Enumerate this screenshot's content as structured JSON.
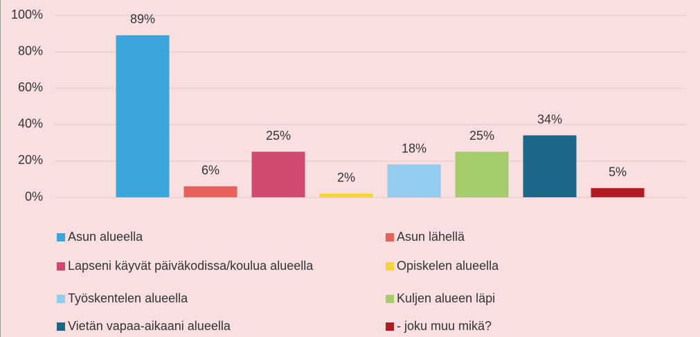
{
  "chart_data": {
    "type": "bar",
    "categories": [
      "Asun alueella",
      "Asun lähellä",
      "Lapseni käyvät päiväkodissa/koulua alueella",
      "Opiskelen alueella",
      "Työskentelen alueella",
      "Kuljen alueen läpi",
      "Vietän vapaa-aikaani alueella",
      "- joku muu mikä?"
    ],
    "values": [
      89,
      6,
      25,
      2,
      18,
      25,
      34,
      5
    ],
    "value_labels": [
      "89%",
      "6%",
      "25%",
      "2%",
      "18%",
      "25%",
      "34%",
      "5%"
    ],
    "colors": [
      "#3aa6dc",
      "#e8605a",
      "#d04a6e",
      "#f5d33a",
      "#93ccee",
      "#a5cc6b",
      "#1c6688",
      "#b01c22"
    ],
    "ylim": [
      0,
      100
    ],
    "yticks": [
      {
        "value": 0,
        "label": "0%"
      },
      {
        "value": 20,
        "label": "20%"
      },
      {
        "value": 40,
        "label": "40%"
      },
      {
        "value": 60,
        "label": "60%"
      },
      {
        "value": 80,
        "label": "80%"
      },
      {
        "value": 100,
        "label": "100%"
      }
    ],
    "grid": true,
    "legend": "bottom"
  }
}
